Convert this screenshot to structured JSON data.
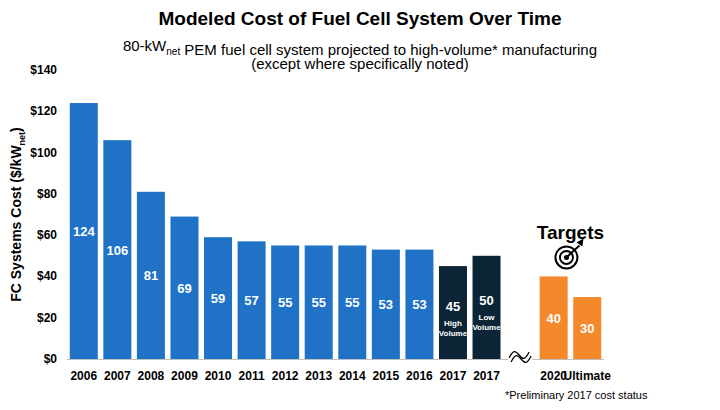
{
  "chart_data": {
    "type": "bar",
    "title": "Modeled Cost of Fuel Cell System Over Time",
    "subtitle": [
      "80-kWnet PEM fuel cell system projected to high-volume* manufacturing",
      "(except where specifically noted)"
    ],
    "ylabel": "FC Systems Cost ($/kWnet)",
    "categories": [
      "2006",
      "2007",
      "2008",
      "2009",
      "2010",
      "2011",
      "2012",
      "2013",
      "2014",
      "2015",
      "2016",
      "2017",
      "2017",
      null,
      "2020",
      "Ultimate"
    ],
    "values": [
      124,
      106,
      81,
      69,
      59,
      57,
      55,
      55,
      55,
      53,
      53,
      45,
      50,
      null,
      40,
      30
    ],
    "colors": [
      "#1f72c6",
      "#1f72c6",
      "#1f72c6",
      "#1f72c6",
      "#1f72c6",
      "#1f72c6",
      "#1f72c6",
      "#1f72c6",
      "#1f72c6",
      "#1f72c6",
      "#1f72c6",
      "#0c2536",
      "#0c2536",
      null,
      "#f4892b",
      "#f4892b"
    ],
    "ylim": [
      0,
      140
    ],
    "yticks": [
      {
        "value": 0,
        "label": "$0"
      },
      {
        "value": 20,
        "label": "$20"
      },
      {
        "value": 40,
        "label": "$40"
      },
      {
        "value": 60,
        "label": "$60"
      },
      {
        "value": 80,
        "label": "$80"
      },
      {
        "value": 100,
        "label": "$100"
      },
      {
        "value": 120,
        "label": "$120"
      },
      {
        "value": 140,
        "label": "$140"
      }
    ],
    "grid": false,
    "data_labels": true,
    "annotations": [
      {
        "index": 11,
        "text": "High Volume",
        "position": "inside"
      },
      {
        "index": 12,
        "text": "Low Volume",
        "position": "inside"
      },
      {
        "index": 14,
        "text": "Targets",
        "position": "above"
      }
    ],
    "footnote": "*Preliminary 2017 cost status"
  }
}
